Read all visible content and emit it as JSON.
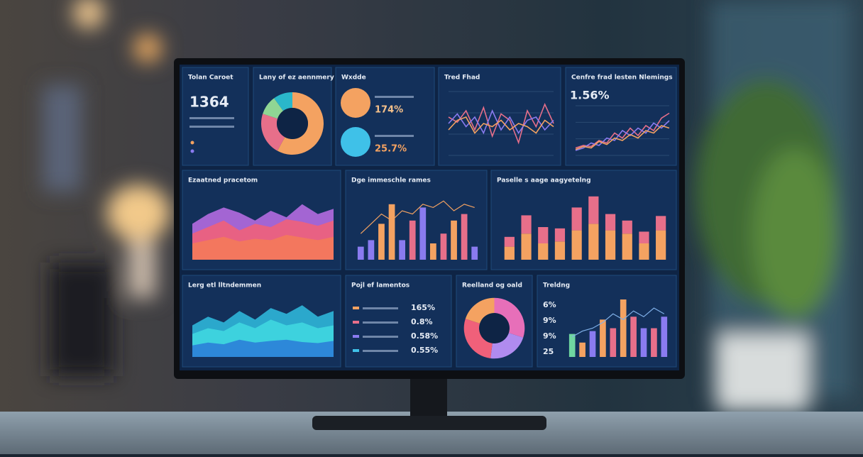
{
  "panels": [
    {
      "type": "kpi",
      "title": "Tolan Caroet",
      "value": "1364"
    },
    {
      "type": "donut",
      "title": "Lany of ez aennmery",
      "values": [
        58,
        22,
        10,
        10
      ],
      "colors": [
        "#f4a261",
        "#e76f8a",
        "#8fd694",
        "#2ab7ca"
      ]
    },
    {
      "type": "circles",
      "title": "Wxdde",
      "items": [
        {
          "value": "174%",
          "color": "#f4a261"
        },
        {
          "value": "25.7%",
          "color": "#3fc1e8"
        }
      ]
    },
    {
      "type": "line",
      "title": "Tred Fhad",
      "ylim": [
        0,
        100
      ],
      "series": [
        {
          "color": "#e76f8a",
          "values": [
            60,
            52,
            70,
            40,
            75,
            30,
            65,
            55,
            20,
            70,
            45,
            80,
            50
          ]
        },
        {
          "color": "#8a7bf0",
          "values": [
            50,
            65,
            45,
            60,
            35,
            70,
            40,
            60,
            35,
            55,
            60,
            40,
            55
          ]
        },
        {
          "color": "#f4a261",
          "values": [
            40,
            55,
            60,
            35,
            50,
            45,
            55,
            40,
            50,
            45,
            35,
            55,
            45
          ]
        }
      ]
    },
    {
      "type": "line",
      "title": "Cenfre frad lesten Nlemings",
      "value": "1.56%",
      "ylim": [
        0,
        100
      ],
      "series": [
        {
          "color": "#e76f8a",
          "values": [
            15,
            20,
            18,
            30,
            25,
            45,
            35,
            55,
            40,
            60,
            50,
            75,
            85
          ]
        },
        {
          "color": "#8a7bf0",
          "values": [
            10,
            15,
            25,
            20,
            35,
            30,
            50,
            40,
            55,
            45,
            65,
            55,
            70
          ]
        },
        {
          "color": "#f4a261",
          "values": [
            12,
            18,
            15,
            28,
            22,
            35,
            30,
            42,
            35,
            50,
            45,
            60,
            55
          ]
        }
      ]
    },
    {
      "type": "area",
      "title": "Ezaatned pracetom",
      "ylim": [
        0,
        100
      ],
      "series": [
        {
          "color": "#b46be0",
          "values": [
            55,
            70,
            80,
            72,
            60,
            75,
            65,
            85,
            70,
            78
          ]
        },
        {
          "color": "#f0607a",
          "values": [
            40,
            50,
            60,
            45,
            55,
            50,
            62,
            58,
            52,
            60
          ]
        },
        {
          "color": "#f47a5a",
          "values": [
            25,
            30,
            35,
            28,
            32,
            30,
            38,
            34,
            30,
            35
          ]
        }
      ]
    },
    {
      "type": "bar",
      "title": "Dge immeschle rames",
      "ylim": [
        0,
        100
      ],
      "values": [
        20,
        30,
        55,
        85,
        30,
        60,
        80,
        25,
        40,
        60,
        70,
        20
      ],
      "colors": [
        "#8a7bf0",
        "#8a7bf0",
        "#f4a261",
        "#f4a261",
        "#8a7bf0",
        "#e76f8a",
        "#8a7bf0",
        "#f4a261",
        "#e76f8a",
        "#f4a261",
        "#e76f8a",
        "#8a7bf0"
      ],
      "line": {
        "color": "#f4a261",
        "values": [
          40,
          55,
          70,
          60,
          75,
          70,
          85,
          80,
          90,
          75,
          85,
          80
        ]
      }
    },
    {
      "type": "stacked",
      "title": "Paselle s aage aagyetelng",
      "ylim": [
        0,
        100
      ],
      "series": [
        {
          "color": "#f4a261",
          "values": [
            20,
            40,
            25,
            28,
            45,
            55,
            45,
            40,
            25,
            45
          ]
        },
        {
          "color": "#e76f8a",
          "values": [
            15,
            28,
            25,
            20,
            35,
            42,
            25,
            20,
            18,
            22
          ]
        }
      ]
    },
    {
      "type": "area",
      "title": "Lerg etl lltndemmen",
      "ylim": [
        0,
        100
      ],
      "series": [
        {
          "color": "#2fb6d8",
          "values": [
            55,
            70,
            60,
            80,
            65,
            85,
            75,
            90,
            70,
            80
          ]
        },
        {
          "color": "#3fd6e0",
          "values": [
            40,
            50,
            45,
            60,
            50,
            65,
            55,
            60,
            50,
            55
          ]
        },
        {
          "color": "#2b7fd8",
          "values": [
            20,
            25,
            22,
            30,
            25,
            28,
            30,
            26,
            24,
            28
          ]
        }
      ]
    },
    {
      "type": "list",
      "title": "Pojl ef lamentos",
      "items": [
        {
          "value": "165%",
          "color": "#f4a261"
        },
        {
          "value": "0.8%",
          "color": "#e76f8a"
        },
        {
          "value": "0.58%",
          "color": "#8a7bf0"
        },
        {
          "value": "0.55%",
          "color": "#3fc1e8"
        }
      ]
    },
    {
      "type": "donut",
      "title": "Reelland og oald",
      "values": [
        30,
        22,
        28,
        20
      ],
      "colors": [
        "#e76fb9",
        "#b08bef",
        "#f0607a",
        "#f4a261"
      ]
    },
    {
      "type": "bar",
      "title": "Treldng",
      "ylim": [
        0,
        100
      ],
      "labels": [
        "6%",
        "9%",
        "9%",
        "25"
      ],
      "values": [
        40,
        25,
        45,
        65,
        50,
        100,
        70,
        50,
        50,
        70
      ],
      "colors": [
        "#6fd6a0",
        "#f4a261",
        "#8a7bf0",
        "#f4a261",
        "#e76f8a",
        "#f4a261",
        "#e76f8a",
        "#8a7bf0",
        "#e76f8a",
        "#8a7bf0"
      ],
      "line": {
        "color": "#7fb0e8",
        "values": [
          35,
          45,
          50,
          60,
          75,
          65,
          80,
          70,
          85,
          75
        ]
      }
    }
  ]
}
